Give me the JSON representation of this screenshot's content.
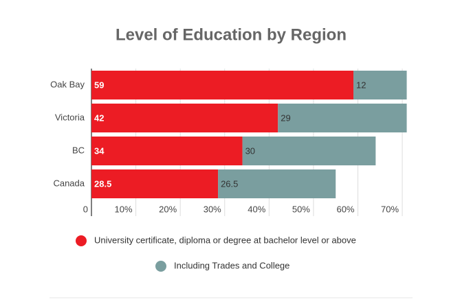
{
  "chart_data": {
    "type": "stacked-barh",
    "title": "Level of Education by Region",
    "categories": [
      "Oak Bay",
      "Victoria",
      "BC",
      "Canada"
    ],
    "series": [
      {
        "name": "University certificate, diploma or degree at bachelor level or above",
        "color": "#ec1c24",
        "values": [
          59,
          42,
          34,
          28.5
        ]
      },
      {
        "name": "Including Trades and College",
        "color": "#7a9e9f",
        "values": [
          12,
          29,
          30,
          26.5
        ]
      }
    ],
    "xlim": [
      0,
      72
    ],
    "xticks": [
      0,
      {
        "value": 10,
        "label": "10%"
      },
      {
        "value": 20,
        "label": "20%"
      },
      {
        "value": 30,
        "label": "30%"
      },
      {
        "value": 40,
        "label": "40%"
      },
      {
        "value": 50,
        "label": "50%"
      },
      {
        "value": 60,
        "label": "60%"
      },
      {
        "value": 70,
        "label": "70%"
      }
    ],
    "grid": true
  }
}
